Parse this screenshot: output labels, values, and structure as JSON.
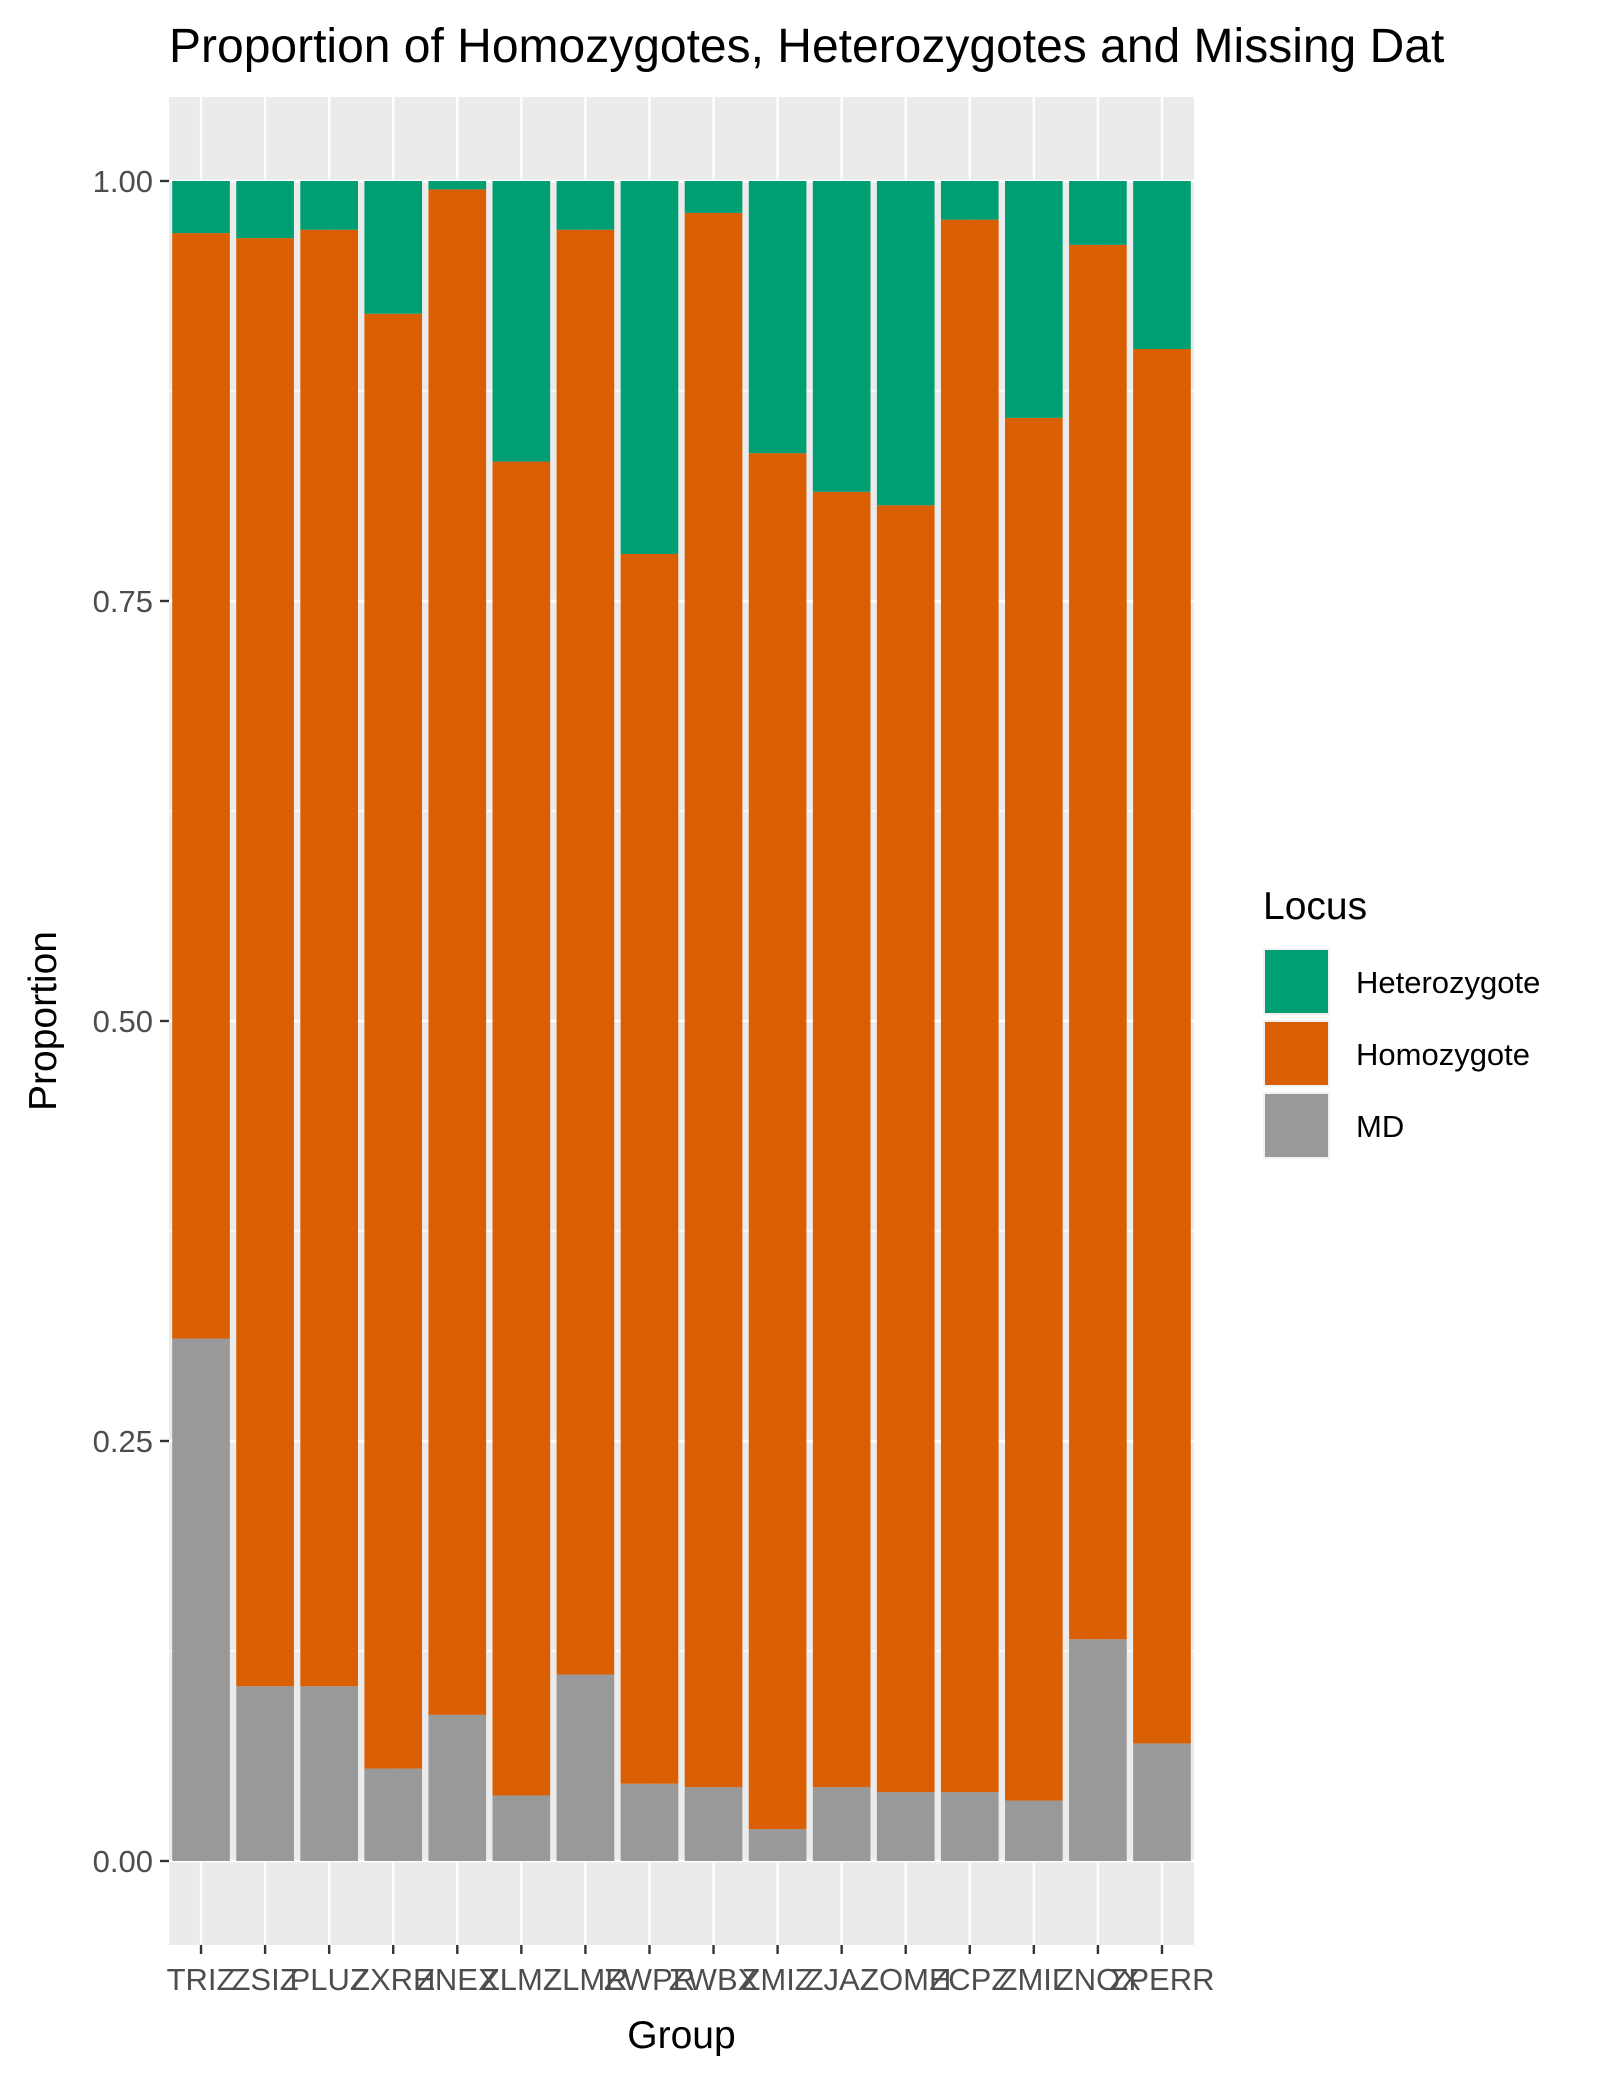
{
  "chart_data": {
    "type": "bar",
    "stacked": true,
    "title": "Proportion of Homozygotes, Heterozygotes and Missing Dat",
    "xlabel": "Group",
    "ylabel": "Proportion",
    "ylim": [
      -0.05,
      1.05
    ],
    "yticks": [
      0.0,
      0.25,
      0.5,
      0.75,
      1.0
    ],
    "ytick_labels": [
      "0.00",
      "0.25",
      "0.50",
      "0.75",
      "1.00"
    ],
    "categories": [
      "TRIZ",
      "ZSIZ",
      "PLUZ",
      "ZXRH",
      "ZNEX",
      "ZLMZ",
      "ZLMR",
      "ZWPR",
      "ZWBX",
      "ZMIZ",
      "ZJAZ",
      "ZOMH",
      "ZCPZ",
      "ZMIL",
      "ZNOX",
      "ZPERR"
    ],
    "grid": true,
    "legend": {
      "title": "Locus",
      "position": "right",
      "entries": [
        "Heterozygote",
        "Homozygote",
        "MD"
      ]
    },
    "series": [
      {
        "name": "MD",
        "color": "#999999",
        "values": [
          0.311,
          0.104,
          0.104,
          0.055,
          0.087,
          0.039,
          0.111,
          0.046,
          0.044,
          0.019,
          0.044,
          0.041,
          0.041,
          0.036,
          0.132,
          0.07
        ]
      },
      {
        "name": "Homozygote",
        "color": "#d95f02",
        "values": [
          0.658,
          0.862,
          0.867,
          0.866,
          0.908,
          0.794,
          0.86,
          0.732,
          0.937,
          0.819,
          0.771,
          0.766,
          0.936,
          0.823,
          0.83,
          0.83
        ]
      },
      {
        "name": "Heterozygote",
        "color": "#009e73",
        "values": [
          0.031,
          0.034,
          0.029,
          0.079,
          0.005,
          0.167,
          0.029,
          0.222,
          0.019,
          0.162,
          0.185,
          0.193,
          0.023,
          0.141,
          0.038,
          0.1
        ]
      }
    ]
  }
}
